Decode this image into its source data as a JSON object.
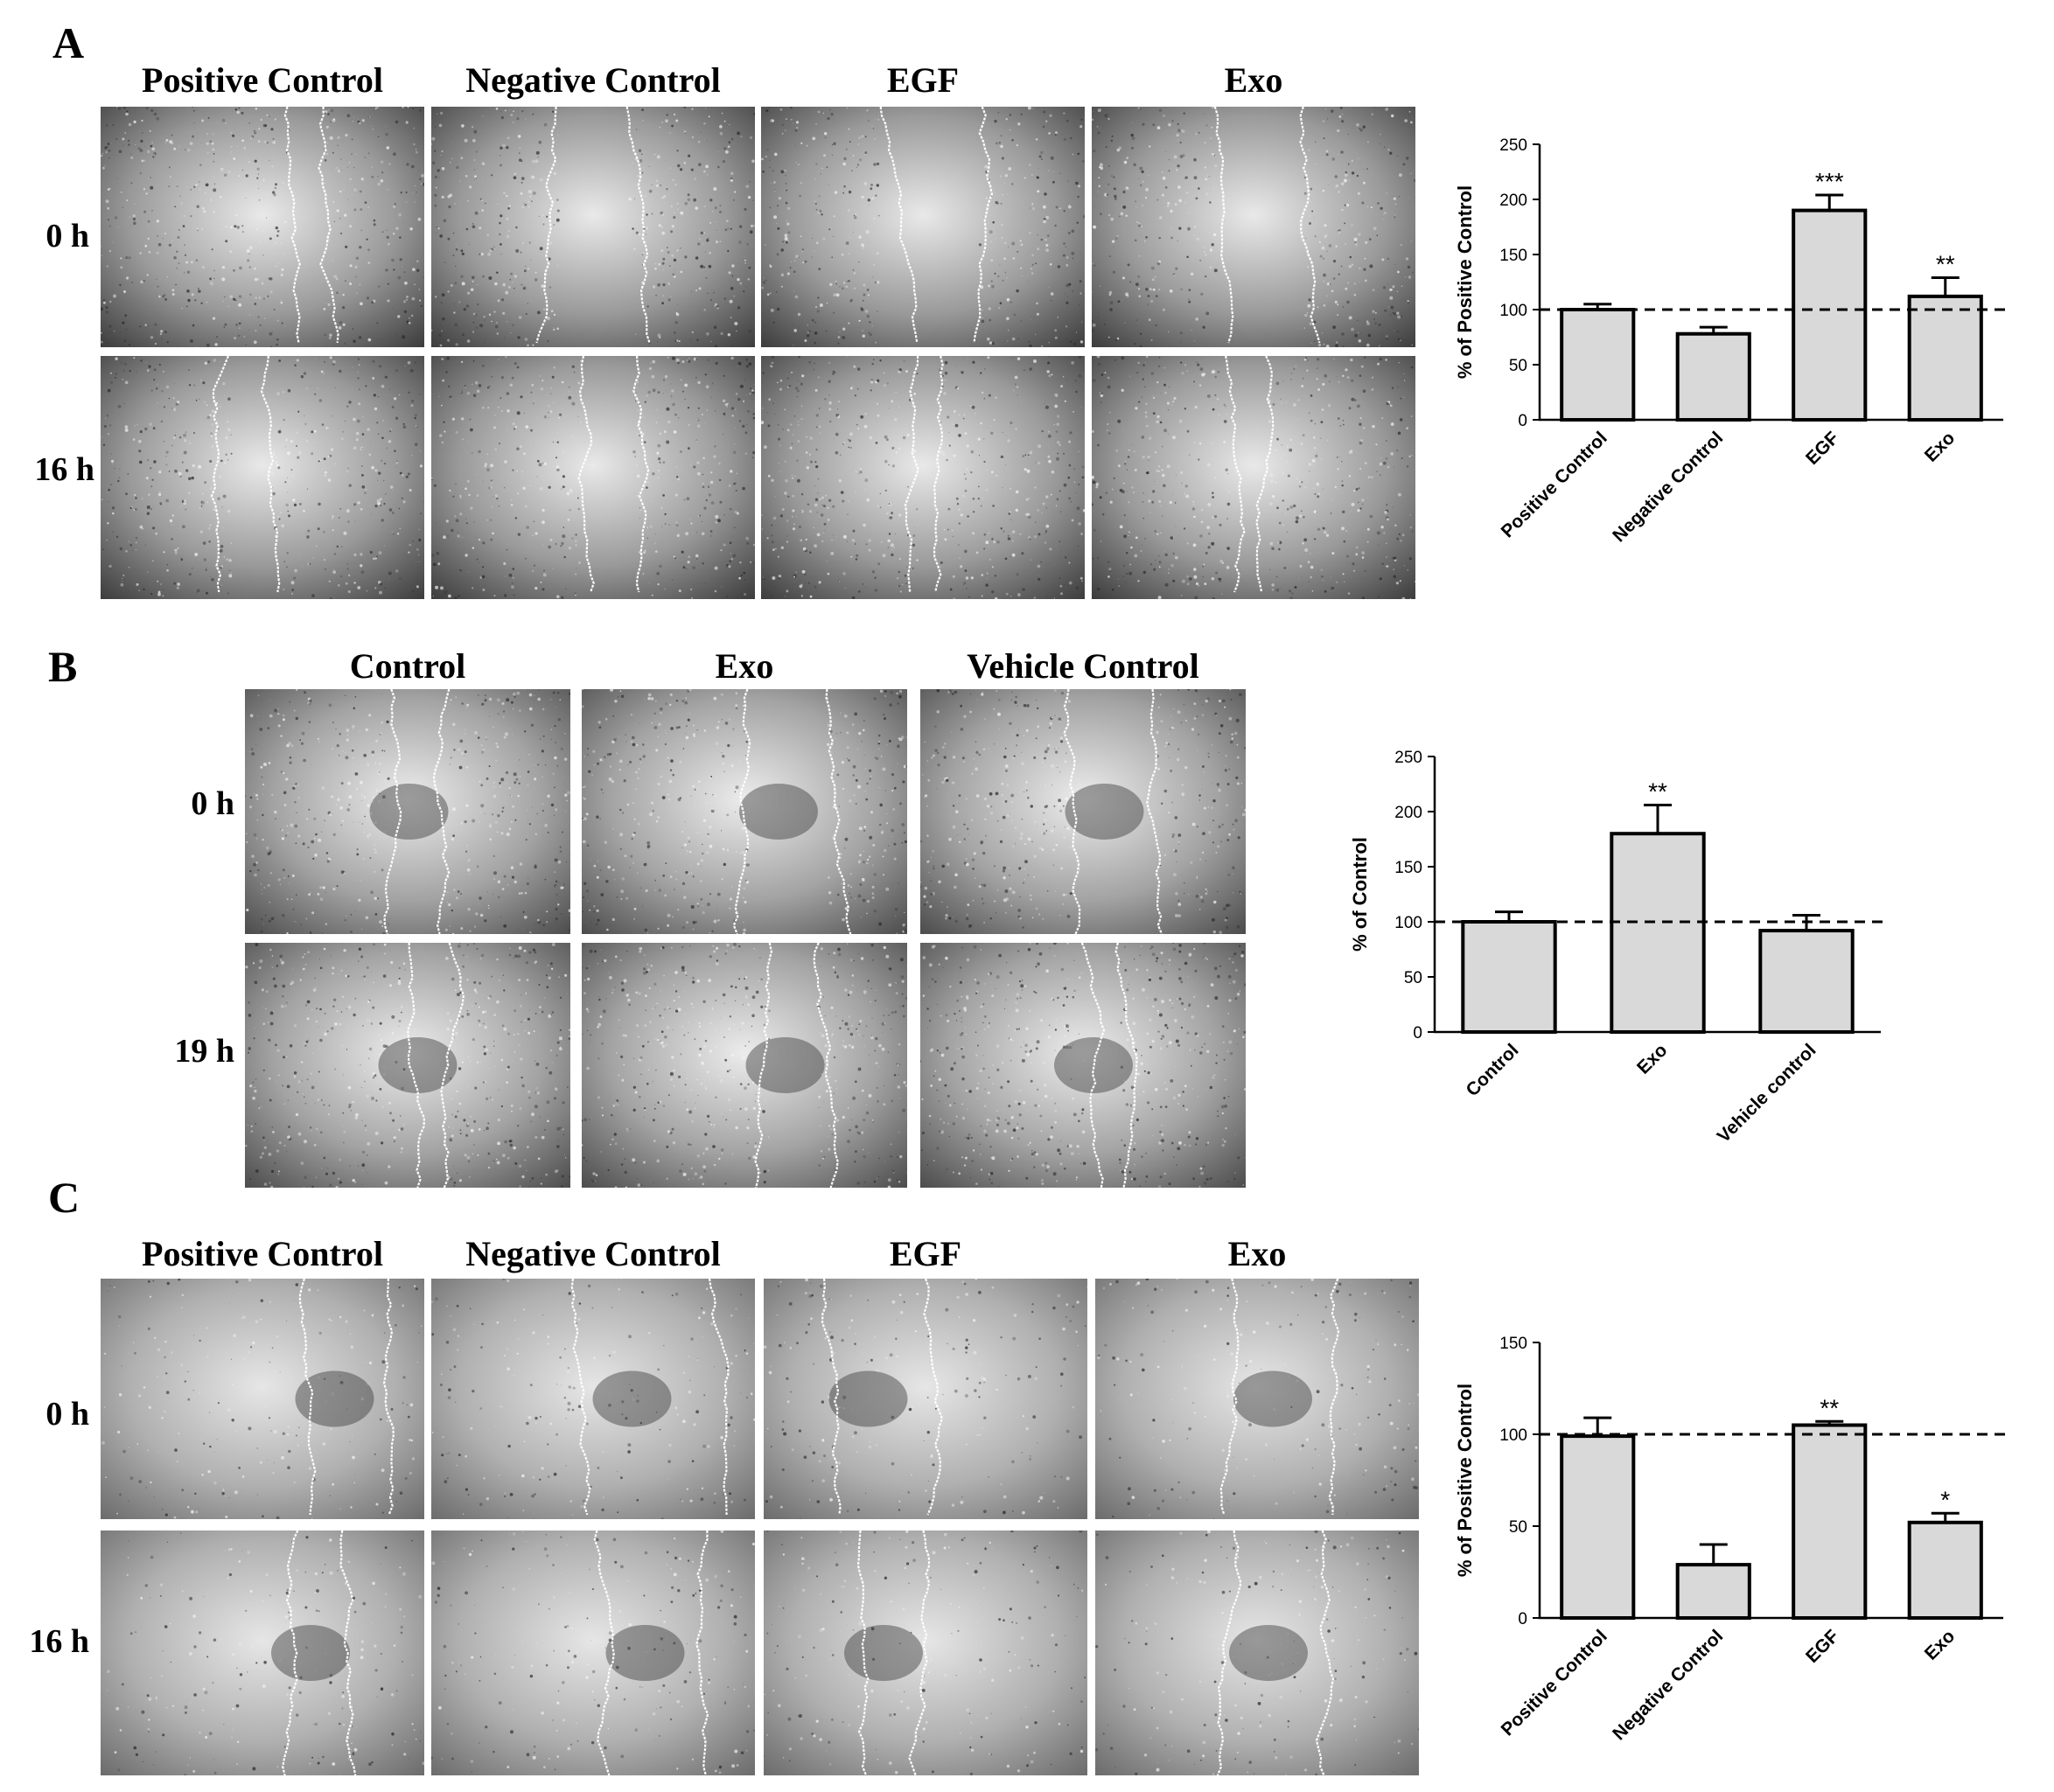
{
  "figure": {
    "panels": [
      {
        "letter": "A",
        "columns": [
          "Positive Control",
          "Negative Control",
          "EGF",
          "Exo"
        ],
        "rows": [
          "0 h",
          "16 h"
        ]
      },
      {
        "letter": "B",
        "columns": [
          "Control",
          "Exo",
          "Vehicle Control"
        ],
        "rows": [
          "0 h",
          "19 h"
        ]
      },
      {
        "letter": "C",
        "columns": [
          "Positive Control",
          "Negative Control",
          "EGF",
          "Exo"
        ],
        "rows": [
          "0 h",
          "16 h"
        ]
      }
    ]
  },
  "colors": {
    "bar_fill": "#d9d9d9",
    "bar_stroke": "#000000",
    "wound_edge": "#ffffff",
    "reference_line": "#000000"
  },
  "chart_data": [
    {
      "type": "bar",
      "panel": "A",
      "ylabel": "% of Positive Control",
      "categories": [
        "Positive Control",
        "Negative Control",
        "EGF",
        "Exo"
      ],
      "values": [
        100,
        78,
        190,
        112
      ],
      "errors": [
        5,
        6,
        14,
        17
      ],
      "significance": [
        "",
        "",
        "***",
        "**"
      ],
      "ylim": [
        0,
        250
      ],
      "yticks": [
        0,
        50,
        100,
        150,
        200,
        250
      ],
      "reference_line": 100,
      "grid": false
    },
    {
      "type": "bar",
      "panel": "B",
      "ylabel": "% of Control",
      "categories": [
        "Control",
        "Exo",
        "Vehicle control"
      ],
      "values": [
        100,
        180,
        92
      ],
      "errors": [
        9,
        26,
        14
      ],
      "significance": [
        "",
        "**",
        ""
      ],
      "ylim": [
        0,
        250
      ],
      "yticks": [
        0,
        50,
        100,
        150,
        200,
        250
      ],
      "reference_line": 100,
      "grid": false
    },
    {
      "type": "bar",
      "panel": "C",
      "ylabel": "% of Positive Control",
      "categories": [
        "Positive Control",
        "Negative Control",
        "EGF",
        "Exo"
      ],
      "values": [
        99,
        29,
        105,
        52
      ],
      "errors": [
        10,
        11,
        2,
        5
      ],
      "significance": [
        "",
        "",
        "**",
        "*"
      ],
      "ylim": [
        0,
        150
      ],
      "yticks": [
        0,
        50,
        100,
        150
      ],
      "reference_line": 100,
      "grid": false
    }
  ]
}
